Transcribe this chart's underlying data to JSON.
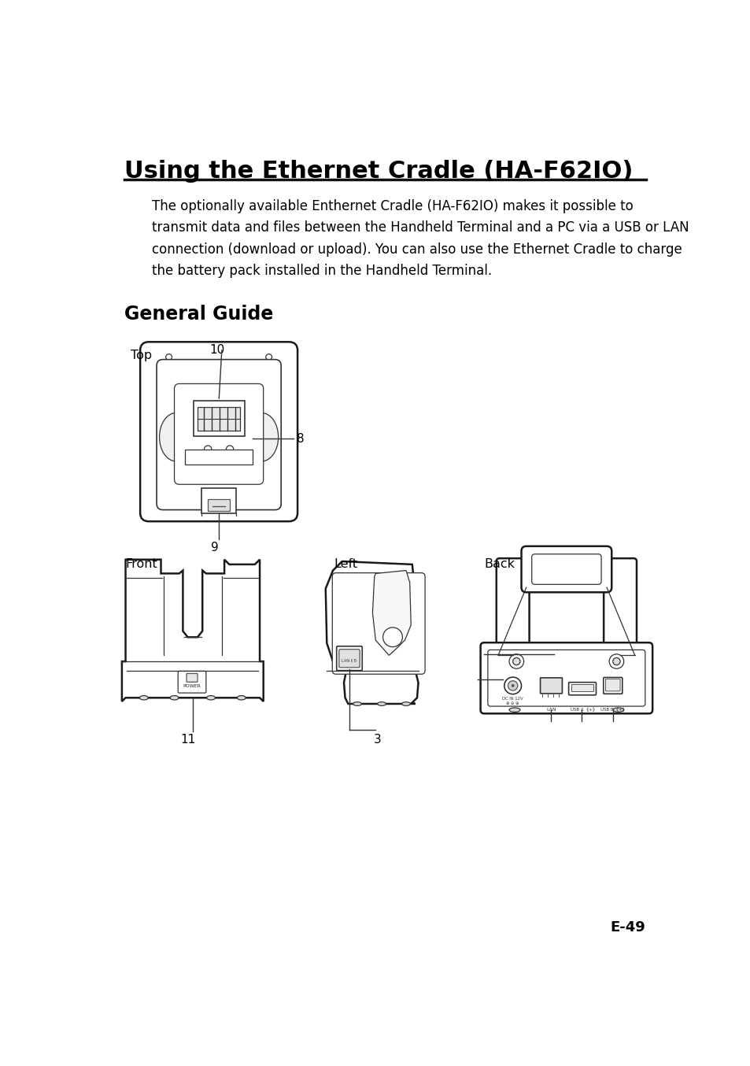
{
  "title": "Using the Ethernet Cradle (HA-F62IO)",
  "body_text": "The optionally available Enthernet Cradle (HA-F62IO) makes it possible to\ntransmit data and files between the Handheld Terminal and a PC via a USB or LAN\nconnection (download or upload). You can also use the Ethernet Cradle to charge\nthe battery pack installed in the Handheld Terminal.",
  "section_title": "General Guide",
  "page_number": "E-49",
  "bg_color": "#ffffff",
  "text_color": "#000000",
  "title_fontsize": 22,
  "body_fontsize": 12.0,
  "section_fontsize": 17,
  "label_fontsize": 11.5
}
